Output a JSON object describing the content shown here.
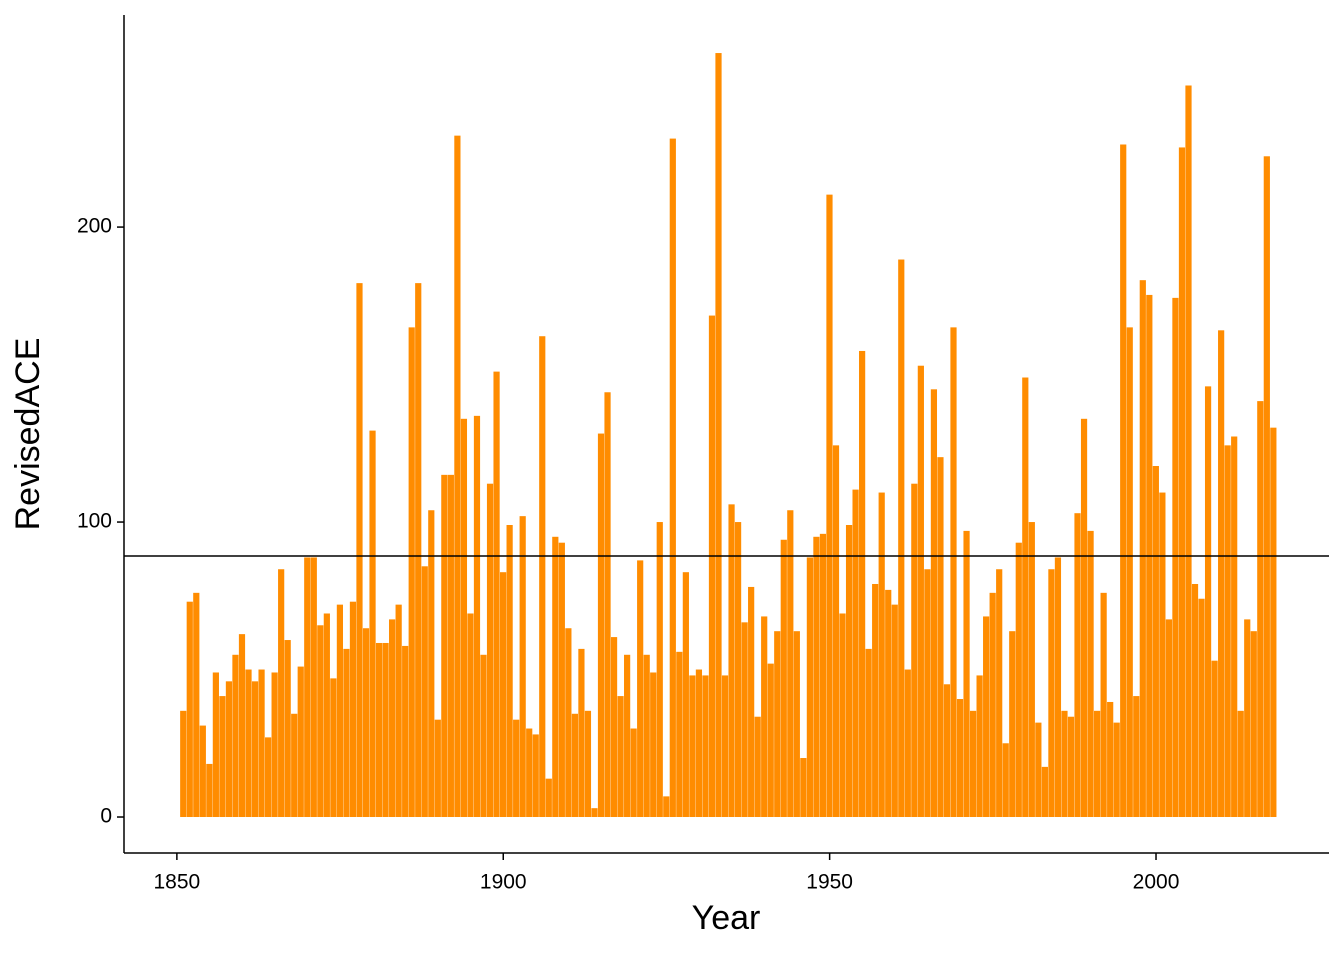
{
  "chart_data": {
    "type": "bar",
    "x_label": "Year",
    "y_label": "RevisedACE",
    "x": [
      1851,
      1852,
      1853,
      1854,
      1855,
      1856,
      1857,
      1858,
      1859,
      1860,
      1861,
      1862,
      1863,
      1864,
      1865,
      1866,
      1867,
      1868,
      1869,
      1870,
      1871,
      1872,
      1873,
      1874,
      1875,
      1876,
      1877,
      1878,
      1879,
      1880,
      1881,
      1882,
      1883,
      1884,
      1885,
      1886,
      1887,
      1888,
      1889,
      1890,
      1891,
      1892,
      1893,
      1894,
      1895,
      1896,
      1897,
      1898,
      1899,
      1900,
      1901,
      1902,
      1903,
      1904,
      1905,
      1906,
      1907,
      1908,
      1909,
      1910,
      1911,
      1912,
      1913,
      1914,
      1915,
      1916,
      1917,
      1918,
      1919,
      1920,
      1921,
      1922,
      1923,
      1924,
      1925,
      1926,
      1927,
      1928,
      1929,
      1930,
      1931,
      1932,
      1933,
      1934,
      1935,
      1936,
      1937,
      1938,
      1939,
      1940,
      1941,
      1942,
      1943,
      1944,
      1945,
      1946,
      1947,
      1948,
      1949,
      1950,
      1951,
      1952,
      1953,
      1954,
      1955,
      1956,
      1957,
      1958,
      1959,
      1960,
      1961,
      1962,
      1963,
      1964,
      1965,
      1966,
      1967,
      1968,
      1969,
      1970,
      1971,
      1972,
      1973,
      1974,
      1975,
      1976,
      1977,
      1978,
      1979,
      1980,
      1981,
      1982,
      1983,
      1984,
      1985,
      1986,
      1987,
      1988,
      1989,
      1990,
      1991,
      1992,
      1993,
      1994,
      1995,
      1996,
      1997,
      1998,
      1999,
      2000,
      2001,
      2002,
      2003,
      2004,
      2005,
      2006,
      2007,
      2008,
      2009,
      2010,
      2011,
      2012,
      2013,
      2014,
      2015,
      2016,
      2017,
      2018
    ],
    "values": [
      36,
      73,
      76,
      31,
      18,
      49,
      41,
      46,
      55,
      62,
      50,
      46,
      50,
      27,
      49,
      84,
      60,
      35,
      51,
      88,
      88,
      65,
      69,
      47,
      72,
      57,
      73,
      181,
      64,
      131,
      59,
      59,
      67,
      72,
      58,
      166,
      181,
      85,
      104,
      33,
      116,
      116,
      231,
      135,
      69,
      136,
      55,
      113,
      151,
      83,
      99,
      33,
      102,
      30,
      28,
      163,
      13,
      95,
      93,
      64,
      35,
      57,
      36,
      3,
      130,
      144,
      61,
      41,
      55,
      30,
      87,
      55,
      49,
      100,
      7,
      230,
      56,
      83,
      48,
      50,
      48,
      170,
      259,
      48,
      106,
      100,
      66,
      78,
      34,
      68,
      52,
      63,
      94,
      104,
      63,
      20,
      88,
      95,
      96,
      211,
      126,
      69,
      99,
      111,
      158,
      57,
      79,
      110,
      77,
      72,
      189,
      50,
      113,
      153,
      84,
      145,
      122,
      45,
      166,
      40,
      97,
      36,
      48,
      68,
      76,
      84,
      25,
      63,
      93,
      149,
      100,
      32,
      17,
      84,
      88,
      36,
      34,
      103,
      135,
      97,
      36,
      76,
      39,
      32,
      228,
      166,
      41,
      182,
      177,
      119,
      110,
      67,
      176,
      227,
      248,
      79,
      74,
      146,
      53,
      165,
      126,
      129,
      36,
      67,
      63,
      141,
      224,
      132
    ],
    "color": "#ff8c00",
    "hline": 88.5,
    "xlim": [
      1841.9,
      2026.5
    ],
    "xticks": [
      1850,
      1900,
      1950,
      2000
    ],
    "ylim": [
      -12.2,
      271.9
    ],
    "yticks": [
      0,
      100,
      200
    ],
    "grid": false
  }
}
